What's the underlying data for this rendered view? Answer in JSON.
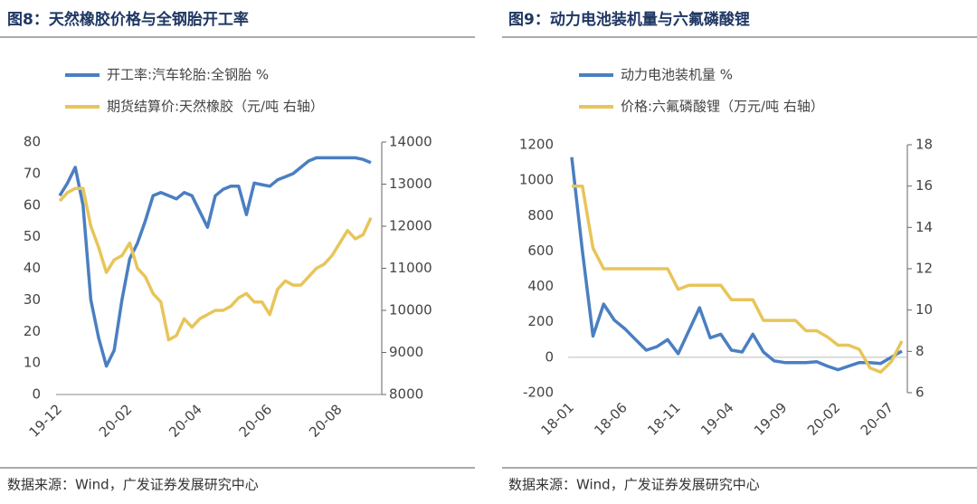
{
  "chart_data": [
    {
      "type": "line",
      "title": "图8：天然橡胶价格与全钢胎开工率",
      "source": "数据来源：Wind，广发证券发展研究中心",
      "categories": [
        "19-12",
        null,
        null,
        null,
        null,
        null,
        null,
        null,
        null,
        "20-02",
        null,
        null,
        null,
        null,
        null,
        null,
        null,
        null,
        "20-04",
        null,
        null,
        null,
        null,
        null,
        null,
        null,
        null,
        "20-06",
        null,
        null,
        null,
        null,
        null,
        null,
        null,
        null,
        "20-08",
        null,
        null,
        null,
        null
      ],
      "series": [
        {
          "name": "开工率:汽车轮胎:全钢胎 %",
          "color": "#4a7fc1",
          "values": [
            63,
            67,
            72,
            60,
            30,
            18,
            9,
            14,
            30,
            43,
            48,
            55,
            63,
            64,
            63,
            62,
            64,
            63,
            58,
            53,
            63,
            65,
            66,
            66,
            57,
            67,
            66.5,
            66,
            68,
            69,
            70,
            72,
            74,
            75,
            75,
            75,
            75,
            75,
            75,
            74.5,
            73.5
          ]
        },
        {
          "name": "期货结算价:天然橡胶（元/吨 右轴）",
          "color": "#e8c55a",
          "axis": "y2",
          "values": [
            12600,
            12800,
            12900,
            12900,
            12000,
            11500,
            10900,
            11200,
            11300,
            11600,
            11000,
            10800,
            10400,
            10200,
            9300,
            9400,
            9800,
            9600,
            9800,
            9900,
            10000,
            10000,
            10100,
            10300,
            10400,
            10200,
            10200,
            9900,
            10500,
            10700,
            10600,
            10600,
            10800,
            11000,
            11100,
            11300,
            11600,
            11900,
            11700,
            11800,
            12200
          ]
        }
      ],
      "ylim": [
        0,
        80
      ],
      "yticks": [
        0,
        10,
        20,
        30,
        40,
        50,
        60,
        70,
        80
      ],
      "y2lim": [
        8000,
        14000
      ],
      "y2ticks": [
        8000,
        9000,
        10000,
        11000,
        12000,
        13000,
        14000
      ]
    },
    {
      "type": "line",
      "title": "图9：动力电池装机量与六氟磷酸锂",
      "source": "数据来源：Wind，广发证券发展研究中心",
      "categories": [
        "18-01",
        null,
        null,
        null,
        null,
        "18-06",
        null,
        null,
        null,
        null,
        "18-11",
        null,
        null,
        null,
        null,
        "19-04",
        null,
        null,
        null,
        null,
        "19-09",
        null,
        null,
        null,
        null,
        "20-02",
        null,
        null,
        null,
        null,
        "20-07",
        null
      ],
      "series": [
        {
          "name": "动力电池装机量 %",
          "color": "#4a7fc1",
          "values": [
            1130,
            600,
            120,
            300,
            210,
            160,
            100,
            40,
            60,
            100,
            20,
            150,
            280,
            110,
            130,
            40,
            30,
            130,
            30,
            -20,
            -30,
            -30,
            -30,
            -25,
            -50,
            -70,
            -50,
            -30,
            -30,
            -35,
            0,
            35
          ]
        },
        {
          "name": "价格:六氟磷酸锂（万元/吨 右轴）",
          "color": "#e8c55a",
          "axis": "y2",
          "values": [
            16,
            16,
            13,
            12,
            12,
            12,
            12,
            12,
            12,
            12,
            11,
            11.2,
            11.2,
            11.2,
            11.2,
            10.5,
            10.5,
            10.5,
            9.5,
            9.5,
            9.5,
            9.5,
            9,
            9,
            8.7,
            8.3,
            8.3,
            8.1,
            7.2,
            7,
            7.5,
            8.5
          ]
        }
      ],
      "ylim": [
        -200,
        1200
      ],
      "yticks": [
        -200,
        0,
        200,
        400,
        600,
        800,
        1000,
        1200
      ],
      "y2lim": [
        6,
        18
      ],
      "y2ticks": [
        6,
        8,
        10,
        12,
        14,
        16,
        18
      ]
    }
  ]
}
